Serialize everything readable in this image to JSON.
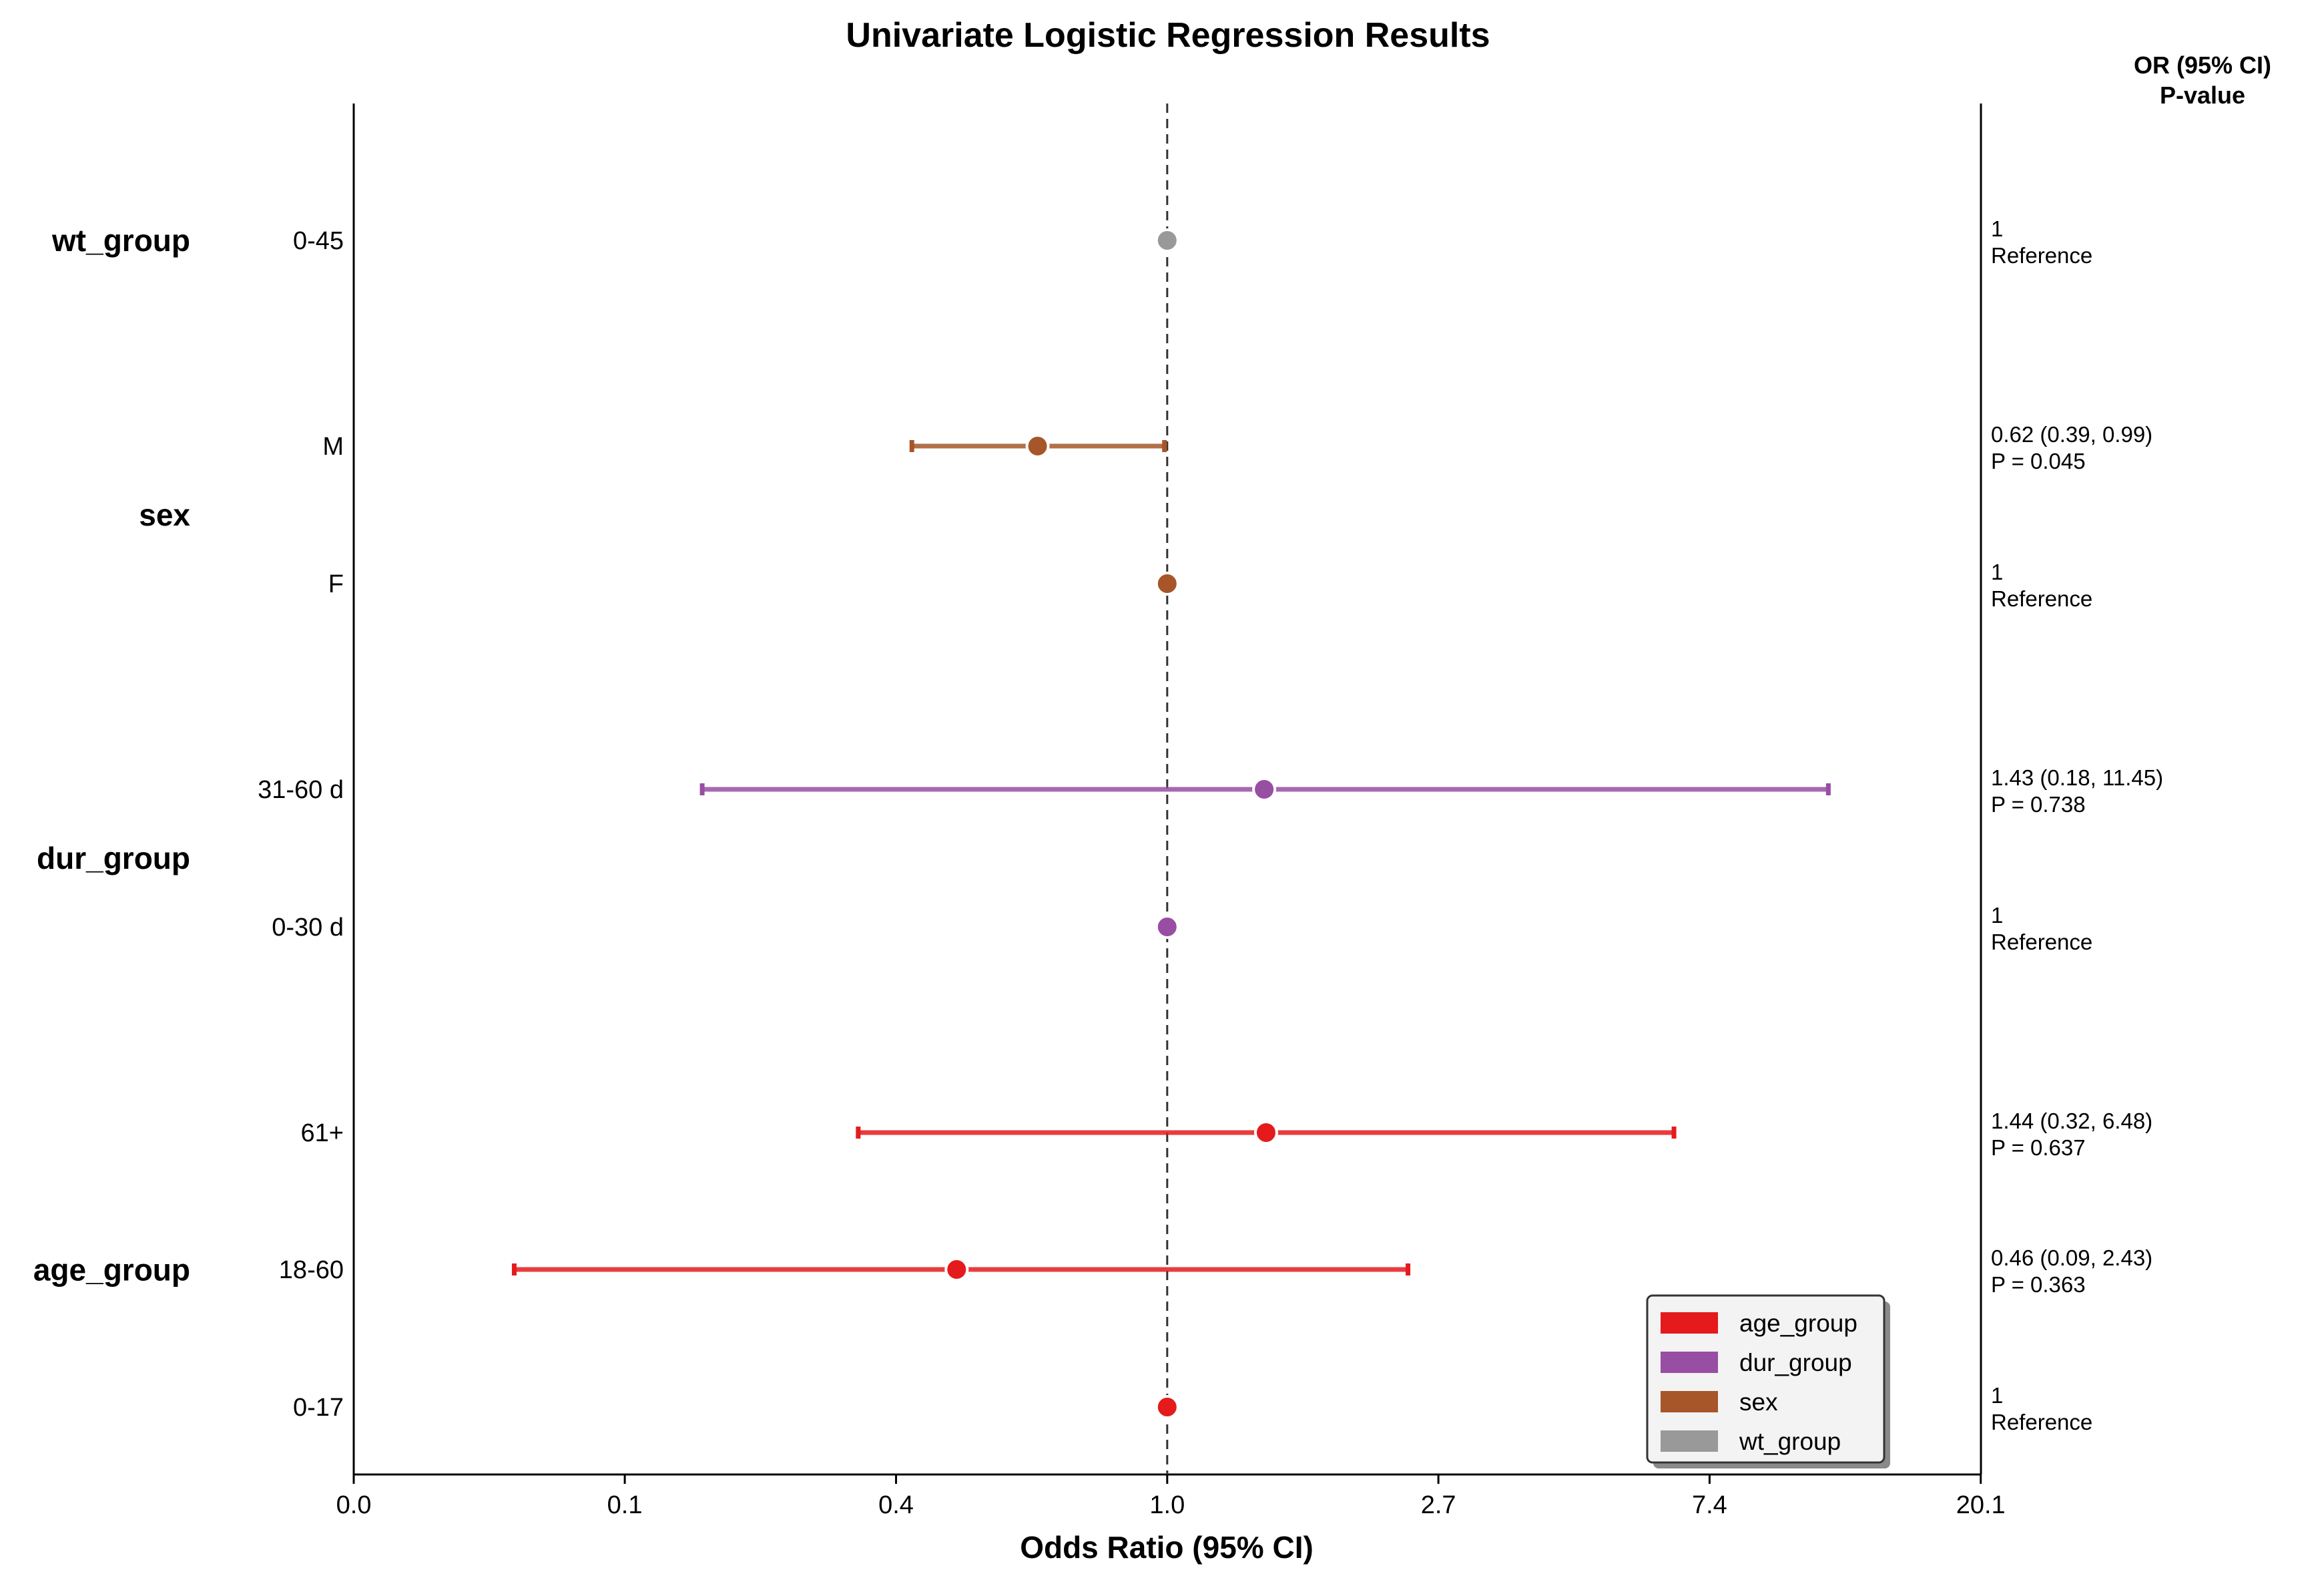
{
  "chart_data": {
    "type": "scatter",
    "subtype": "forest-plot",
    "title": "Univariate Logistic Regression Results",
    "xlabel": "Odds Ratio (95% CI)",
    "x_scale": "log",
    "xlim": [
      0.0498,
      20.1
    ],
    "x_tick_labels": [
      "0.0",
      "0.1",
      "0.4",
      "1.0",
      "2.7",
      "7.4",
      "20.1"
    ],
    "x_tick_values": [
      0.0498,
      0.1353,
      0.3679,
      1.0,
      2.7183,
      7.3891,
      20.0855
    ],
    "reference_line": 1.0,
    "annotation_header": [
      "OR (95% CI)",
      "P-value"
    ],
    "groups": [
      {
        "name": "wt_group",
        "color": "#999999"
      },
      {
        "name": "sex",
        "color": "#a65628"
      },
      {
        "name": "dur_group",
        "color": "#984ea3"
      },
      {
        "name": "age_group",
        "color": "#e41a1c"
      }
    ],
    "rows": [
      {
        "group": "wt_group",
        "level": "0-45",
        "or": 1.0,
        "ci_low": null,
        "ci_high": null,
        "line1": "1",
        "line2": "Reference"
      },
      {
        "group": "sex",
        "level": "M",
        "or": 0.62,
        "ci_low": 0.39,
        "ci_high": 0.99,
        "line1": "0.62 (0.39, 0.99)",
        "line2": "P = 0.045"
      },
      {
        "group": "sex",
        "level": "F",
        "or": 1.0,
        "ci_low": null,
        "ci_high": null,
        "line1": "1",
        "line2": "Reference"
      },
      {
        "group": "dur_group",
        "level": "31-60 d",
        "or": 1.43,
        "ci_low": 0.18,
        "ci_high": 11.45,
        "line1": "1.43 (0.18, 11.45)",
        "line2": "P = 0.738"
      },
      {
        "group": "dur_group",
        "level": "0-30 d",
        "or": 1.0,
        "ci_low": null,
        "ci_high": null,
        "line1": "1",
        "line2": "Reference"
      },
      {
        "group": "age_group",
        "level": "61+",
        "or": 1.44,
        "ci_low": 0.32,
        "ci_high": 6.48,
        "line1": "1.44 (0.32, 6.48)",
        "line2": "P = 0.637"
      },
      {
        "group": "age_group",
        "level": "18-60",
        "or": 0.46,
        "ci_low": 0.09,
        "ci_high": 2.43,
        "line1": "0.46 (0.09, 2.43)",
        "line2": "P = 0.363"
      },
      {
        "group": "age_group",
        "level": "0-17",
        "or": 1.0,
        "ci_low": null,
        "ci_high": null,
        "line1": "1",
        "line2": "Reference"
      }
    ],
    "legend": {
      "placement": "bottom-right",
      "entries": [
        {
          "label": "age_group",
          "color": "#e41a1c"
        },
        {
          "label": "dur_group",
          "color": "#984ea3"
        },
        {
          "label": "sex",
          "color": "#a65628"
        },
        {
          "label": "wt_group",
          "color": "#999999"
        }
      ]
    },
    "grid": false
  }
}
